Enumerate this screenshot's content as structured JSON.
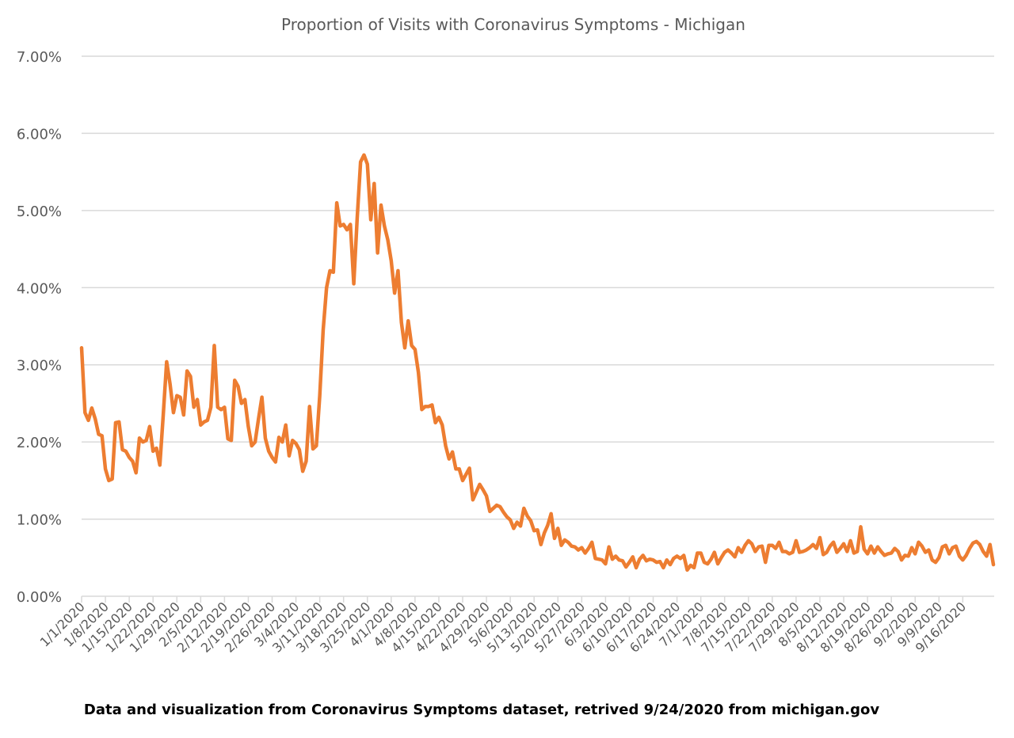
{
  "caption": "Data and visualization from Coronavirus Symptoms dataset, retrived 9/24/2020 from michigan.gov",
  "chart_data": {
    "type": "line",
    "title": "Proportion of Visits with Coronavirus Symptoms - Michigan",
    "xlabel": "",
    "ylabel": "",
    "ylim": [
      0,
      7
    ],
    "yticks": [
      "0.00%",
      "1.00%",
      "2.00%",
      "3.00%",
      "4.00%",
      "5.00%",
      "6.00%",
      "7.00%"
    ],
    "x_start": "1/1/2020",
    "x_end": "9/22/2020",
    "x_tick_labels": [
      "1/1/2020",
      "1/8/2020",
      "1/15/2020",
      "1/22/2020",
      "1/29/2020",
      "2/5/2020",
      "2/12/2020",
      "2/19/2020",
      "2/26/2020",
      "3/4/2020",
      "3/11/2020",
      "3/18/2020",
      "3/25/2020",
      "4/1/2020",
      "4/8/2020",
      "4/15/2020",
      "4/22/2020",
      "4/29/2020",
      "5/6/2020",
      "5/13/2020",
      "5/20/2020",
      "5/27/2020",
      "6/3/2020",
      "6/10/2020",
      "6/17/2020",
      "6/24/2020",
      "7/1/2020",
      "7/8/2020",
      "7/15/2020",
      "7/22/2020",
      "7/29/2020",
      "8/5/2020",
      "8/12/2020",
      "8/19/2020",
      "8/26/2020",
      "9/2/2020",
      "9/9/2020",
      "9/16/2020"
    ],
    "grid": true,
    "legend": "none",
    "line_color": "#ed7d31",
    "series": [
      {
        "values": [
          3.22,
          2.38,
          2.28,
          2.44,
          2.3,
          2.1,
          2.08,
          1.65,
          1.5,
          1.52,
          2.25,
          2.26,
          1.9,
          1.88,
          1.8,
          1.75,
          1.6,
          2.05,
          2.0,
          2.02,
          2.2,
          1.88,
          1.92,
          1.7,
          2.35,
          3.04,
          2.75,
          2.38,
          2.6,
          2.58,
          2.35,
          2.92,
          2.85,
          2.45,
          2.55,
          2.22,
          2.26,
          2.28,
          2.45,
          3.25,
          2.45,
          2.42,
          2.45,
          2.04,
          2.02,
          2.8,
          2.72,
          2.5,
          2.55,
          2.2,
          1.95,
          2.0,
          2.3,
          2.58,
          2.05,
          1.88,
          1.8,
          1.74,
          2.06,
          2.0,
          2.22,
          1.82,
          2.02,
          1.98,
          1.9,
          1.62,
          1.75,
          2.46,
          1.91,
          1.95,
          2.6,
          3.45,
          4.0,
          4.22,
          4.2,
          5.1,
          4.8,
          4.82,
          4.75,
          4.82,
          4.05,
          4.9,
          5.63,
          5.72,
          5.6,
          4.88,
          5.35,
          4.45,
          5.07,
          4.8,
          4.62,
          4.35,
          3.93,
          4.22,
          3.55,
          3.22,
          3.57,
          3.25,
          3.2,
          2.9,
          2.42,
          2.46,
          2.46,
          2.48,
          2.25,
          2.32,
          2.22,
          1.95,
          1.78,
          1.87,
          1.65,
          1.65,
          1.5,
          1.58,
          1.66,
          1.25,
          1.35,
          1.45,
          1.38,
          1.3,
          1.1,
          1.14,
          1.18,
          1.16,
          1.09,
          1.03,
          0.99,
          0.88,
          0.96,
          0.91,
          1.14,
          1.04,
          0.98,
          0.85,
          0.86,
          0.67,
          0.82,
          0.92,
          1.07,
          0.75,
          0.88,
          0.66,
          0.73,
          0.7,
          0.65,
          0.64,
          0.6,
          0.63,
          0.56,
          0.62,
          0.7,
          0.49,
          0.48,
          0.47,
          0.42,
          0.64,
          0.48,
          0.52,
          0.47,
          0.46,
          0.38,
          0.44,
          0.51,
          0.37,
          0.48,
          0.53,
          0.46,
          0.48,
          0.47,
          0.44,
          0.45,
          0.37,
          0.47,
          0.41,
          0.49,
          0.52,
          0.49,
          0.53,
          0.34,
          0.4,
          0.37,
          0.56,
          0.56,
          0.44,
          0.42,
          0.48,
          0.57,
          0.42,
          0.5,
          0.57,
          0.6,
          0.56,
          0.51,
          0.63,
          0.57,
          0.66,
          0.72,
          0.68,
          0.58,
          0.64,
          0.65,
          0.44,
          0.66,
          0.66,
          0.62,
          0.7,
          0.58,
          0.58,
          0.55,
          0.57,
          0.72,
          0.57,
          0.58,
          0.6,
          0.63,
          0.67,
          0.62,
          0.76,
          0.54,
          0.57,
          0.65,
          0.7,
          0.57,
          0.62,
          0.68,
          0.58,
          0.72,
          0.56,
          0.58,
          0.9,
          0.61,
          0.55,
          0.65,
          0.56,
          0.64,
          0.58,
          0.53,
          0.55,
          0.56,
          0.62,
          0.58,
          0.47,
          0.53,
          0.52,
          0.63,
          0.55,
          0.7,
          0.65,
          0.57,
          0.6,
          0.47,
          0.44,
          0.5,
          0.64,
          0.66,
          0.55,
          0.63,
          0.65,
          0.52,
          0.47,
          0.53,
          0.62,
          0.69,
          0.71,
          0.67,
          0.58,
          0.52,
          0.67,
          0.41
        ]
      }
    ]
  }
}
